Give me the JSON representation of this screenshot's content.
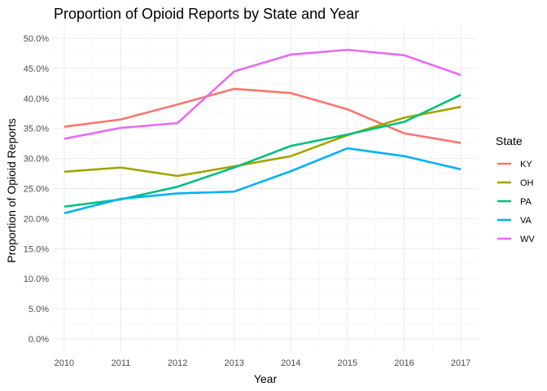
{
  "chart_data": {
    "type": "line",
    "title": "Proportion of Opioid Reports by State and Year",
    "xlabel": "Year",
    "ylabel": "Proportion of Opioid Reports",
    "x": [
      2010,
      2011,
      2012,
      2013,
      2014,
      2015,
      2016,
      2017
    ],
    "x_ticks": [
      "2010",
      "2011",
      "2012",
      "2013",
      "2014",
      "2015",
      "2016",
      "2017"
    ],
    "xlim": [
      2009.8,
      2017.3
    ],
    "y_ticks": [
      0,
      0.05,
      0.1,
      0.15,
      0.2,
      0.25,
      0.3,
      0.35,
      0.4,
      0.45,
      0.5
    ],
    "y_tick_labels": [
      "0.0%",
      "5.0%",
      "10.0%",
      "15.0%",
      "20.0%",
      "25.0%",
      "30.0%",
      "35.0%",
      "40.0%",
      "45.0%",
      "50.0%"
    ],
    "ylim": [
      -0.0205,
      0.5205
    ],
    "grid": true,
    "legend": {
      "title": "State",
      "position": "right"
    },
    "series": [
      {
        "name": "KY",
        "color": "#F8766D",
        "values": [
          0.353,
          0.365,
          0.39,
          0.416,
          0.409,
          0.382,
          0.342,
          0.326
        ]
      },
      {
        "name": "OH",
        "color": "#A3A500",
        "values": [
          0.278,
          0.285,
          0.271,
          0.287,
          0.304,
          0.339,
          0.368,
          0.386
        ]
      },
      {
        "name": "PA",
        "color": "#00BF7D",
        "values": [
          0.22,
          0.232,
          0.253,
          0.285,
          0.321,
          0.34,
          0.361,
          0.406
        ]
      },
      {
        "name": "VA",
        "color": "#00B0F6",
        "values": [
          0.209,
          0.233,
          0.242,
          0.245,
          0.279,
          0.317,
          0.304,
          0.282
        ]
      },
      {
        "name": "WV",
        "color": "#E76BF3",
        "values": [
          0.333,
          0.351,
          0.359,
          0.445,
          0.473,
          0.481,
          0.472,
          0.439
        ]
      }
    ]
  }
}
